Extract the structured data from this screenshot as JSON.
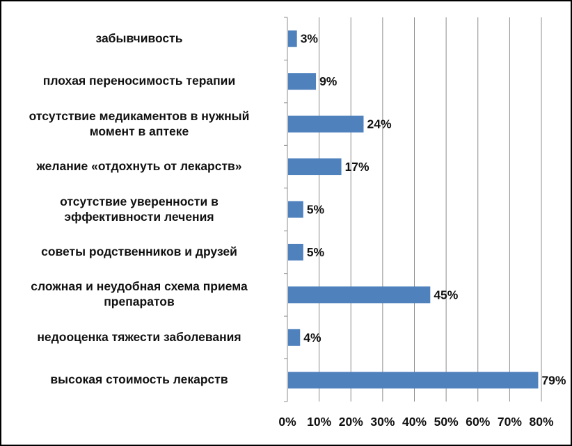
{
  "chart_data": {
    "type": "bar",
    "orientation": "horizontal",
    "categories": [
      "забывчивость",
      "плохая переносимость терапии",
      "отсутствие медикаментов в нужный момент в аптеке",
      "желание «отдохнуть от лекарств»",
      "отсутствие уверенности в эффективности лечения",
      "советы родственников и друзей",
      "сложная и неудобная схема приема препаратов",
      "недооценка тяжести заболевания",
      "высокая стоимость лекарств"
    ],
    "category_lines": [
      [
        "забывчивость"
      ],
      [
        "плохая переносимость терапии"
      ],
      [
        "отсутствие медикаментов в нужный",
        "момент в аптеке"
      ],
      [
        "желание «отдохнуть от лекарств»"
      ],
      [
        "отсутствие уверенности в",
        "эффективности лечения"
      ],
      [
        "советы родственников и друзей"
      ],
      [
        "сложная и неудобная схема приема",
        "препаратов"
      ],
      [
        "недооценка тяжести заболевания"
      ],
      [
        "высокая стоимость лекарств"
      ]
    ],
    "values": [
      3,
      9,
      24,
      17,
      5,
      5,
      45,
      4,
      79
    ],
    "data_labels": [
      "3%",
      "9%",
      "24%",
      "17%",
      "5%",
      "5%",
      "45%",
      "4%",
      "79%"
    ],
    "x_ticks": [
      0,
      10,
      20,
      30,
      40,
      50,
      60,
      70,
      80
    ],
    "x_tick_labels": [
      "0%",
      "10%",
      "20%",
      "30%",
      "40%",
      "50%",
      "60%",
      "70%",
      "80%"
    ],
    "xlim": [
      0,
      80
    ],
    "grid": "vertical",
    "legend": "none",
    "bar_color": "#4F81BD",
    "grid_color": "#8C8C8C",
    "title": "",
    "xlabel": "",
    "ylabel": ""
  }
}
